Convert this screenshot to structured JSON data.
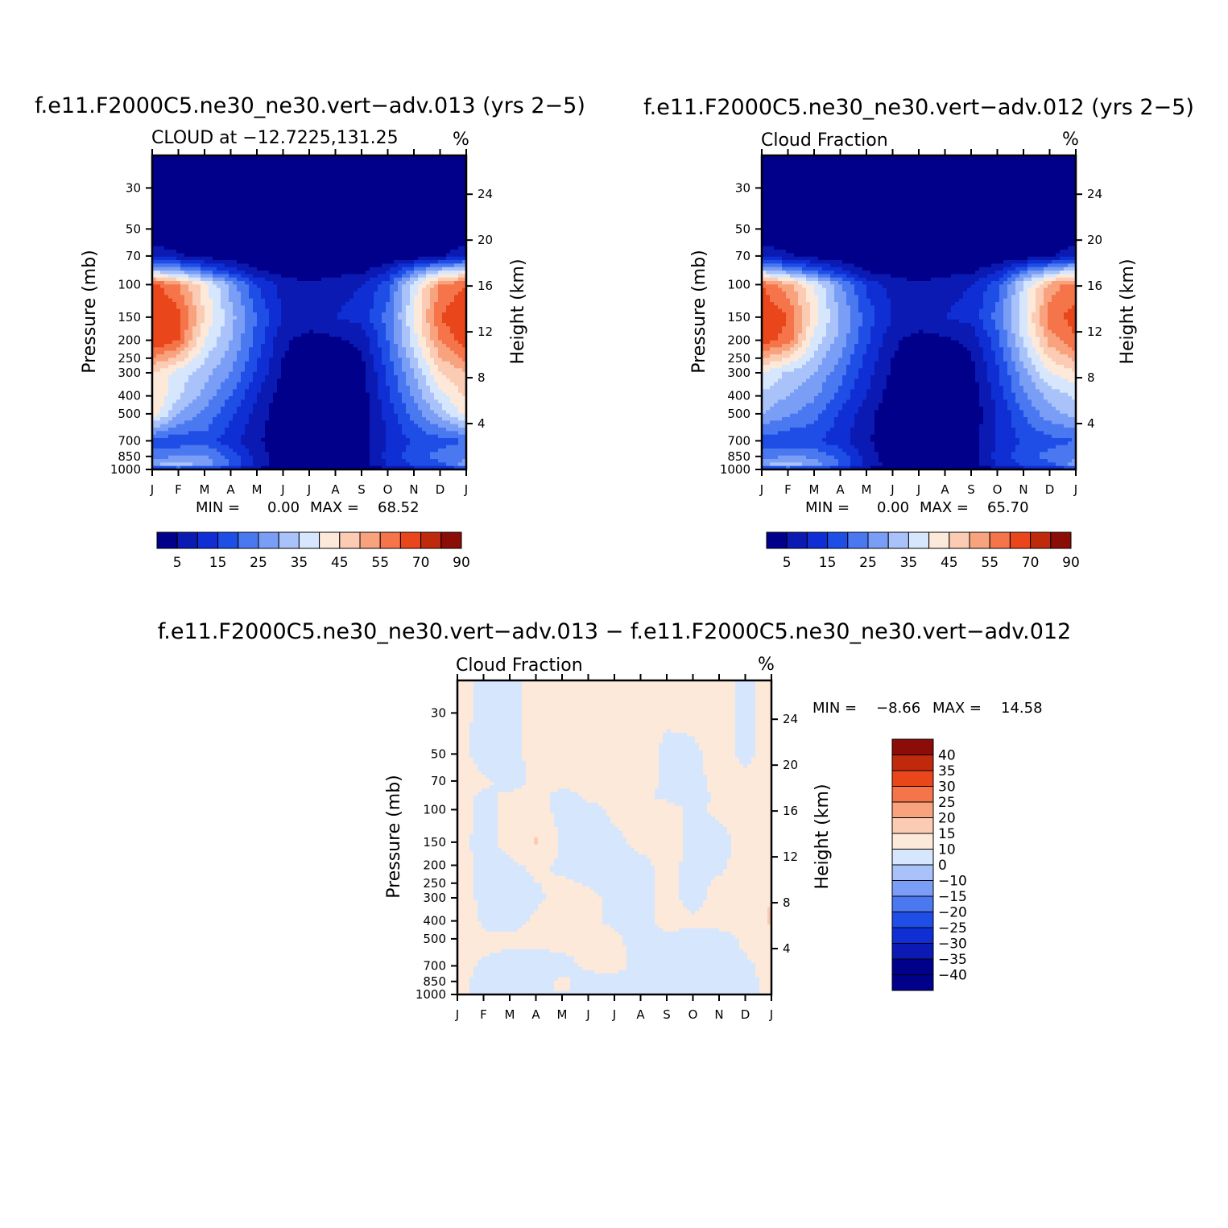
{
  "palette": {
    "base_colors": [
      "#00008a",
      "#0a1ab3",
      "#0f2fd4",
      "#1f4ee6",
      "#4a78f0",
      "#7a9ef6",
      "#a9c2fa",
      "#d6e6fd",
      "#fde9d9",
      "#fbcbb3",
      "#f8a27e",
      "#f5744a",
      "#e9461c",
      "#c02a0c",
      "#8c0c08"
    ],
    "diff_colors": [
      "#00008a",
      "#0a1ab3",
      "#0f2fd4",
      "#1f4ee6",
      "#4a78f0",
      "#7a9ef6",
      "#a9c2fa",
      "#d6e6fd",
      "#fde9d9",
      "#fbcbb3",
      "#f8a27e",
      "#f5744a",
      "#e9461c",
      "#c02a0c",
      "#8c0c08"
    ]
  },
  "chart_data": [
    {
      "type": "heatmap",
      "title": "f.e11.F2000C5.ne30_ne30.vert−adv.013 (yrs 2−5)",
      "subtitle": "CLOUD at −12.7225,131.25",
      "units": "%",
      "xlabel": "",
      "ylabel": "Pressure (mb)",
      "y2label": "Height (km)",
      "x_ticks": [
        "J",
        "F",
        "M",
        "A",
        "M",
        "J",
        "J",
        "A",
        "S",
        "O",
        "N",
        "D",
        "J"
      ],
      "y_ticks": [
        "30",
        "50",
        "70",
        "100",
        "150",
        "200",
        "250",
        "300",
        "400",
        "500",
        "700",
        "850",
        "1000"
      ],
      "y_tick_values": [
        30,
        50,
        70,
        100,
        150,
        200,
        250,
        300,
        400,
        500,
        700,
        850,
        1000
      ],
      "y2_ticks": [
        "24",
        "20",
        "16",
        "12",
        "8",
        "4"
      ],
      "y2_tick_values": [
        24,
        20,
        16,
        12,
        8,
        4
      ],
      "ylim": [
        1000,
        20
      ],
      "min_label": "MIN =",
      "min_value": "0.00",
      "max_label": "MAX =",
      "max_value": "68.52",
      "levels": [
        5,
        10,
        15,
        20,
        25,
        30,
        35,
        40,
        45,
        50,
        55,
        60,
        70,
        80,
        90
      ],
      "colorbar_labels": [
        "5",
        "15",
        "25",
        "35",
        "45",
        "55",
        "70",
        "90"
      ],
      "x": [
        0,
        1,
        2,
        3,
        4,
        5,
        6,
        7,
        8,
        9,
        10,
        11,
        12
      ],
      "pressure": [
        20,
        50,
        70,
        85,
        100,
        150,
        200,
        300,
        400,
        500,
        700,
        850,
        950,
        1000
      ],
      "values": [
        [
          0,
          0,
          0,
          0,
          0,
          0,
          0,
          0,
          0,
          0,
          0,
          0,
          0
        ],
        [
          0,
          0,
          0,
          0,
          0,
          0,
          0,
          0,
          0,
          0,
          0,
          0,
          0
        ],
        [
          8,
          6,
          3,
          1,
          0,
          0,
          0,
          0,
          0,
          0,
          1,
          4,
          9
        ],
        [
          35,
          30,
          22,
          14,
          6,
          3,
          2,
          3,
          4,
          10,
          24,
          35,
          40
        ],
        [
          62,
          55,
          42,
          28,
          15,
          8,
          6,
          8,
          10,
          18,
          38,
          55,
          60
        ],
        [
          68,
          62,
          45,
          32,
          20,
          10,
          8,
          10,
          12,
          22,
          40,
          60,
          66
        ],
        [
          66,
          60,
          40,
          30,
          18,
          6,
          3,
          4,
          6,
          20,
          38,
          55,
          64
        ],
        [
          45,
          38,
          32,
          25,
          14,
          4,
          2,
          2,
          3,
          16,
          30,
          45,
          50
        ],
        [
          45,
          36,
          28,
          20,
          10,
          2,
          1,
          1,
          2,
          14,
          26,
          38,
          46
        ],
        [
          44,
          30,
          24,
          16,
          8,
          1,
          1,
          1,
          1,
          12,
          22,
          32,
          42
        ],
        [
          18,
          16,
          18,
          12,
          6,
          1,
          1,
          1,
          3,
          10,
          16,
          18,
          20
        ],
        [
          22,
          26,
          26,
          18,
          8,
          1,
          1,
          1,
          3,
          12,
          18,
          22,
          24
        ],
        [
          30,
          34,
          28,
          20,
          8,
          1,
          1,
          1,
          2,
          10,
          16,
          18,
          28
        ],
        [
          10,
          10,
          10,
          8,
          4,
          1,
          1,
          1,
          1,
          4,
          6,
          8,
          10
        ]
      ]
    },
    {
      "type": "heatmap",
      "title": "f.e11.F2000C5.ne30_ne30.vert−adv.012 (yrs 2−5)",
      "subtitle": "Cloud Fraction",
      "units": "%",
      "xlabel": "",
      "ylabel": "Pressure (mb)",
      "y2label": "Height (km)",
      "x_ticks": [
        "J",
        "F",
        "M",
        "A",
        "M",
        "J",
        "J",
        "A",
        "S",
        "O",
        "N",
        "D",
        "J"
      ],
      "y_ticks": [
        "30",
        "50",
        "70",
        "100",
        "150",
        "200",
        "250",
        "300",
        "400",
        "500",
        "700",
        "850",
        "1000"
      ],
      "y_tick_values": [
        30,
        50,
        70,
        100,
        150,
        200,
        250,
        300,
        400,
        500,
        700,
        850,
        1000
      ],
      "y2_ticks": [
        "24",
        "20",
        "16",
        "12",
        "8",
        "4"
      ],
      "y2_tick_values": [
        24,
        20,
        16,
        12,
        8,
        4
      ],
      "ylim": [
        1000,
        20
      ],
      "min_label": "MIN =",
      "min_value": "0.00",
      "max_label": "MAX =",
      "max_value": "65.70",
      "levels": [
        5,
        10,
        15,
        20,
        25,
        30,
        35,
        40,
        45,
        50,
        55,
        60,
        70,
        80,
        90
      ],
      "colorbar_labels": [
        "5",
        "15",
        "25",
        "35",
        "45",
        "55",
        "70",
        "90"
      ],
      "x": [
        0,
        1,
        2,
        3,
        4,
        5,
        6,
        7,
        8,
        9,
        10,
        11,
        12
      ],
      "pressure": [
        20,
        50,
        70,
        85,
        100,
        150,
        200,
        300,
        400,
        500,
        700,
        850,
        950,
        1000
      ],
      "values": [
        [
          0,
          0,
          0,
          0,
          0,
          0,
          0,
          0,
          0,
          0,
          0,
          0,
          0
        ],
        [
          0,
          0,
          0,
          0,
          0,
          0,
          0,
          0,
          0,
          0,
          0,
          0,
          0
        ],
        [
          8,
          6,
          3,
          1,
          0,
          0,
          0,
          0,
          0,
          0,
          1,
          4,
          9
        ],
        [
          34,
          28,
          20,
          12,
          5,
          3,
          2,
          3,
          4,
          10,
          22,
          32,
          38
        ],
        [
          60,
          52,
          40,
          26,
          14,
          8,
          6,
          8,
          10,
          18,
          36,
          52,
          58
        ],
        [
          65,
          60,
          43,
          30,
          18,
          10,
          8,
          10,
          12,
          22,
          38,
          58,
          62
        ],
        [
          63,
          58,
          38,
          28,
          16,
          6,
          3,
          4,
          6,
          18,
          36,
          52,
          60
        ],
        [
          40,
          34,
          30,
          22,
          12,
          4,
          2,
          2,
          3,
          14,
          28,
          40,
          44
        ],
        [
          34,
          30,
          26,
          18,
          10,
          2,
          1,
          1,
          2,
          12,
          24,
          32,
          36
        ],
        [
          30,
          26,
          22,
          14,
          7,
          1,
          1,
          1,
          1,
          10,
          20,
          28,
          32
        ],
        [
          18,
          16,
          16,
          12,
          6,
          1,
          1,
          1,
          3,
          10,
          16,
          18,
          20
        ],
        [
          22,
          26,
          24,
          18,
          8,
          1,
          1,
          1,
          3,
          12,
          18,
          22,
          24
        ],
        [
          30,
          34,
          28,
          20,
          8,
          3,
          1,
          1,
          2,
          10,
          16,
          18,
          28
        ],
        [
          10,
          10,
          10,
          8,
          4,
          1,
          1,
          1,
          1,
          4,
          6,
          8,
          10
        ]
      ]
    },
    {
      "type": "heatmap",
      "title": "f.e11.F2000C5.ne30_ne30.vert−adv.013 − f.e11.F2000C5.ne30_ne30.vert−adv.012",
      "subtitle": "Cloud Fraction",
      "units": "%",
      "xlabel": "",
      "ylabel": "Pressure (mb)",
      "y2label": "Height (km)",
      "x_ticks": [
        "J",
        "F",
        "M",
        "A",
        "M",
        "J",
        "J",
        "A",
        "S",
        "O",
        "N",
        "D",
        "J"
      ],
      "y_ticks": [
        "30",
        "50",
        "70",
        "100",
        "150",
        "200",
        "250",
        "300",
        "400",
        "500",
        "700",
        "850",
        "1000"
      ],
      "y_tick_values": [
        30,
        50,
        70,
        100,
        150,
        200,
        250,
        300,
        400,
        500,
        700,
        850,
        1000
      ],
      "y2_ticks": [
        "24",
        "20",
        "16",
        "12",
        "8",
        "4"
      ],
      "y2_tick_values": [
        24,
        20,
        16,
        12,
        8,
        4
      ],
      "ylim": [
        1000,
        20
      ],
      "min_label": "MIN =",
      "min_value": "−8.66",
      "max_label": "MAX =",
      "max_value": "14.58",
      "levels": [
        -40,
        -35,
        -30,
        -25,
        -20,
        -15,
        -10,
        0,
        10,
        15,
        20,
        25,
        30,
        35,
        40
      ],
      "colorbar_labels": [
        "40",
        "35",
        "30",
        "25",
        "20",
        "15",
        "10",
        "0",
        "−10",
        "−15",
        "−20",
        "−25",
        "−30",
        "−35",
        "−40"
      ],
      "x": [
        0,
        1,
        2,
        3,
        4,
        5,
        6,
        7,
        8,
        9,
        10,
        11,
        12
      ],
      "pressure": [
        20,
        50,
        70,
        85,
        100,
        150,
        200,
        300,
        400,
        500,
        700,
        850,
        950,
        1000
      ],
      "values": [
        [
          3,
          -2,
          -3,
          3,
          2,
          1,
          2,
          2,
          2,
          3,
          2,
          -1,
          2
        ],
        [
          3,
          -3,
          -2,
          2,
          2,
          1,
          2,
          2,
          -1,
          -1,
          2,
          -1,
          2
        ],
        [
          3,
          1,
          -2,
          1,
          2,
          1,
          2,
          2,
          -1,
          -2,
          2,
          1,
          2
        ],
        [
          2,
          -1,
          1,
          2,
          -2,
          1,
          2,
          1,
          -1,
          -2,
          1,
          2,
          2
        ],
        [
          2,
          -1,
          1,
          2,
          -2,
          -2,
          1,
          1,
          2,
          -1,
          1,
          2,
          2
        ],
        [
          2,
          -2,
          2,
          11,
          -2,
          -2,
          -1,
          1,
          2,
          -1,
          -2,
          2,
          3
        ],
        [
          3,
          -2,
          -1,
          1,
          -1,
          -2,
          -2,
          -1,
          1,
          -1,
          -1,
          2,
          4
        ],
        [
          4,
          -2,
          -2,
          -1,
          2,
          1,
          -1,
          -2,
          2,
          -2,
          2,
          2,
          10
        ],
        [
          10,
          -2,
          -2,
          1,
          2,
          1,
          -1,
          -2,
          2,
          1,
          2,
          1,
          12
        ],
        [
          3,
          2,
          1,
          1,
          2,
          2,
          1,
          -2,
          -1,
          -2,
          -2,
          1,
          4
        ],
        [
          2,
          -1,
          -2,
          -2,
          -2,
          1,
          2,
          -2,
          -2,
          -2,
          -2,
          -1,
          2
        ],
        [
          2,
          -2,
          -1,
          -2,
          1,
          -2,
          -2,
          -2,
          -2,
          -2,
          -2,
          -2,
          2
        ],
        [
          2,
          -2,
          -2,
          -2,
          1,
          -2,
          -2,
          -2,
          -2,
          -2,
          -2,
          -2,
          2
        ],
        [
          2,
          -2,
          -2,
          -2,
          -2,
          -2,
          -2,
          -2,
          -2,
          -2,
          -2,
          -2,
          2
        ]
      ]
    }
  ]
}
